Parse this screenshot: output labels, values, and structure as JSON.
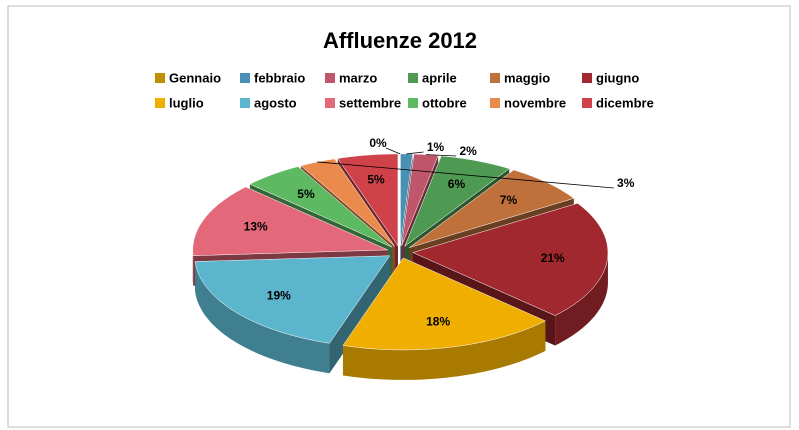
{
  "chart_data": {
    "type": "pie",
    "title": "Affluenze 2012",
    "categories": [
      "Gennaio",
      "febbraio",
      "marzo",
      "aprile",
      "maggio",
      "giugno",
      "luglio",
      "agosto",
      "settembre",
      "ottobre",
      "novembre",
      "dicembre"
    ],
    "values": [
      0,
      1,
      2,
      6,
      7,
      21,
      18,
      19,
      13,
      5,
      3,
      5
    ],
    "value_labels": [
      "0%",
      "1%",
      "2%",
      "6%",
      "7%",
      "21%",
      "18%",
      "19%",
      "13%",
      "5%",
      "3%",
      "5%"
    ],
    "colors": [
      "#c08f00",
      "#4a8fb4",
      "#c0566a",
      "#4f9a52",
      "#c0703a",
      "#a0282e",
      "#f0ae00",
      "#5ab5cd",
      "#e2687a",
      "#5dba62",
      "#ea8a4c",
      "#d0424a"
    ],
    "legend": "top"
  }
}
